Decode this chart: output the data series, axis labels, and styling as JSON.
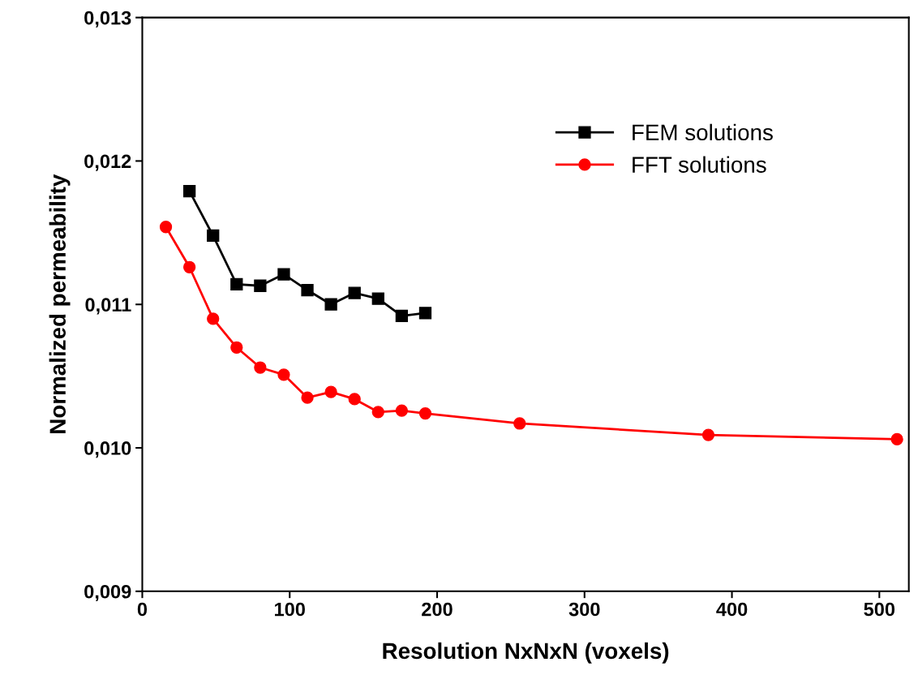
{
  "chart_data": {
    "type": "line",
    "xlabel": "Resolution NxNxN (voxels)",
    "ylabel": "Normalized permeability",
    "xlim": [
      0,
      520
    ],
    "xticks": [
      0,
      100,
      200,
      300,
      400,
      500
    ],
    "ylim": [
      0.009,
      0.013
    ],
    "yticks": [
      {
        "value": 0.009,
        "label": "0,009"
      },
      {
        "value": 0.01,
        "label": "0,010"
      },
      {
        "value": 0.011,
        "label": "0,011"
      },
      {
        "value": 0.012,
        "label": "0,012"
      },
      {
        "value": 0.013,
        "label": "0,013"
      }
    ],
    "grid": false,
    "legend": "top right",
    "line_style": "solid",
    "series": [
      {
        "name": "FEM solutions",
        "color": "#000000",
        "marker": "square",
        "x": [
          32,
          48,
          64,
          80,
          96,
          112,
          128,
          144,
          160,
          176,
          192
        ],
        "values": [
          0.01179,
          0.01148,
          0.01114,
          0.01113,
          0.01121,
          0.0111,
          0.011,
          0.01108,
          0.01104,
          0.01092,
          0.01094
        ]
      },
      {
        "name": "FFT solutions",
        "color": "#ff0000",
        "marker": "circle",
        "x": [
          16,
          32,
          48,
          64,
          80,
          96,
          112,
          128,
          144,
          160,
          176,
          192,
          256,
          384,
          512
        ],
        "values": [
          0.01154,
          0.01126,
          0.0109,
          0.0107,
          0.01056,
          0.01051,
          0.01035,
          0.01039,
          0.01034,
          0.01025,
          0.01026,
          0.01024,
          0.01017,
          0.01009,
          0.01006
        ]
      }
    ]
  }
}
